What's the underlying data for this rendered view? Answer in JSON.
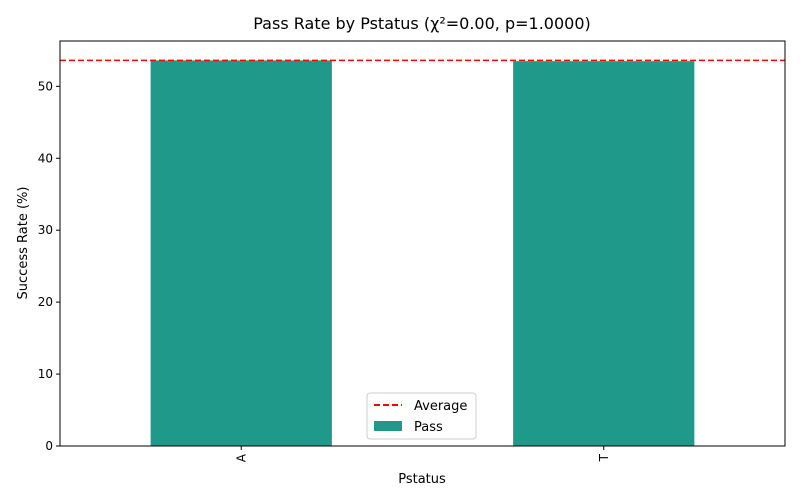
{
  "chart_data": {
    "type": "bar",
    "title": "Pass Rate by Pstatus (χ²=0.00, p=1.0000)",
    "xlabel": "Pstatus",
    "ylabel": "Success Rate (%)",
    "categories": [
      "A",
      "T"
    ],
    "series": [
      {
        "name": "Pass",
        "values": [
          53.6,
          53.5
        ],
        "color": "#1f9a8a"
      }
    ],
    "reference_line": {
      "name": "Average",
      "value": 53.6,
      "color": "#ff0000",
      "style": "dashed"
    },
    "ylim": [
      0,
      56.3
    ],
    "yticks": [
      0,
      10,
      20,
      30,
      40,
      50
    ],
    "grid": false,
    "legend_position": "lower center"
  }
}
